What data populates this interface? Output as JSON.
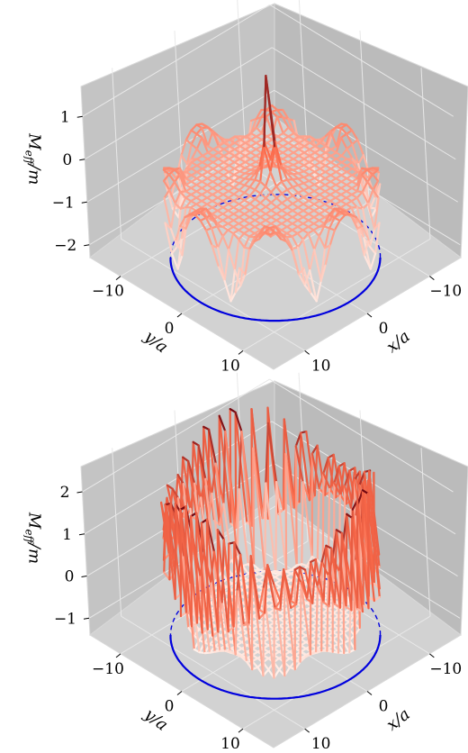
{
  "chart_data": [
    {
      "type": "surface3d",
      "zlabel": "M_{eff}/m",
      "xlabel": "x/a",
      "ylabel": "y/a",
      "zticks": [
        1,
        0,
        -1,
        -2
      ],
      "xticks": [
        -10,
        0,
        10
      ],
      "yticks": [
        -10,
        0,
        10
      ],
      "xlim": [
        -15,
        15
      ],
      "ylim": [
        -15,
        15
      ],
      "zlim": [
        -2.3,
        1.7
      ],
      "disk_radius": 12,
      "circle_color": "#0000dd",
      "features": {
        "central_peak": 1.6,
        "flat_level": -0.6,
        "edge_dips": -2.0,
        "edge_bumps": -0.25
      }
    },
    {
      "type": "surface3d",
      "zlabel": "M_{eff}/m",
      "xlabel": "x/a",
      "ylabel": "y/a",
      "zticks": [
        2,
        1,
        0,
        -1
      ],
      "xticks": [
        -10,
        0,
        10
      ],
      "yticks": [
        -10,
        0,
        10
      ],
      "xlim": [
        -15,
        15
      ],
      "ylim": [
        -15,
        15
      ],
      "zlim": [
        -1.4,
        2.6
      ],
      "disk_radius": 12,
      "circle_color": "#0000dd",
      "features": {
        "interior_level": -0.95,
        "rim_mean": 1.2,
        "rim_max": 2.5,
        "rim_min": -1.2
      }
    }
  ],
  "colors": {
    "pane_left": "#c4c4c4",
    "pane_right": "#bbbbbb",
    "pane_floor": "#d2d2d2",
    "grid": "#e8e8e8",
    "colormap_low": "#fff5f0",
    "colormap_mid": "#fb6a4a",
    "colormap_high": "#67000d"
  }
}
